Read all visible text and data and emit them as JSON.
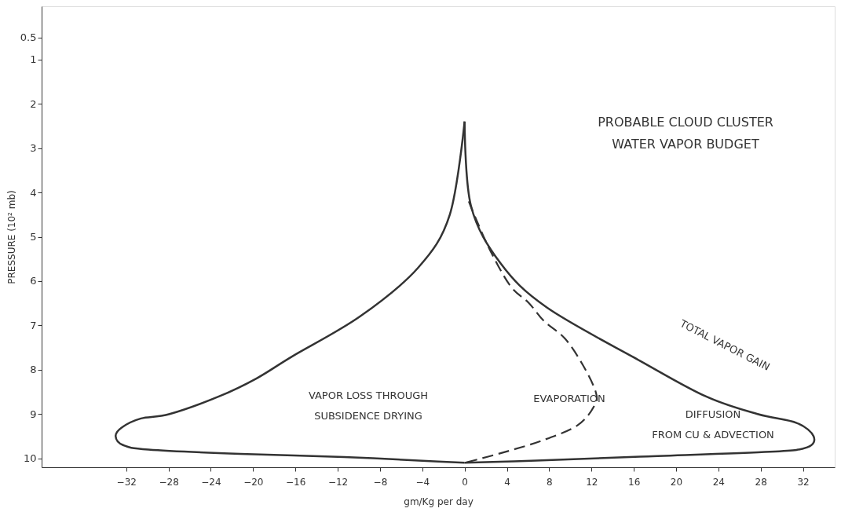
{
  "chart_data": {
    "type": "line",
    "title": "PROBABLE CLOUD CLUSTER\nWATER VAPOR BUDGET",
    "xlabel": "gm/Kg per day",
    "ylabel": "PRESSURE (10² mb)",
    "xlim": [
      -40,
      35
    ],
    "ylim": [
      10.2,
      -0.2
    ],
    "xticks": [
      -32,
      -28,
      -24,
      -20,
      -16,
      -12,
      -8,
      -4,
      0,
      4,
      8,
      12,
      16,
      20,
      24,
      28,
      32
    ],
    "yticks": [
      0.5,
      1,
      2,
      3,
      4,
      5,
      6,
      7,
      8,
      9,
      10
    ],
    "grid": false,
    "series": [
      {
        "color": "#333333",
        "line_style": "solid",
        "x": [
          0,
          -1.4,
          -4.4,
          -9.9,
          -16.3,
          -19.7,
          -23.2,
          -27.9,
          -30.6,
          -32.4,
          -33.0,
          -32.3,
          -29.9,
          -21.2,
          -11.4,
          -2.5,
          0
        ],
        "values": [
          2.4,
          4.5,
          5.7,
          6.8,
          7.7,
          8.2,
          8.6,
          9.0,
          9.1,
          9.3,
          9.5,
          9.7,
          9.8,
          9.9,
          9.97,
          10.07,
          10.1
        ]
      },
      {
        "color": "#333333",
        "line_style": "solid",
        "x": [
          0,
          0.6,
          3.4,
          7.8,
          16.6,
          22.8,
          27.7,
          31.4,
          33.0,
          32.4,
          28.9,
          16.6,
          6.8,
          0
        ],
        "values": [
          2.4,
          4.3,
          5.6,
          6.6,
          7.8,
          8.6,
          9.0,
          9.2,
          9.5,
          9.75,
          9.85,
          9.96,
          10.05,
          10.1
        ]
      },
      {
        "color": "#333333",
        "line_style": "dashed",
        "x": [
          0.4,
          0.9,
          2.4,
          4.3,
          6.1,
          7.5,
          9.5,
          11.2,
          12.4,
          12.3,
          10.7,
          7.3,
          3.6,
          0
        ],
        "values": [
          4.2,
          4.5,
          5.3,
          6.1,
          6.5,
          6.9,
          7.3,
          7.9,
          8.5,
          8.8,
          9.25,
          9.6,
          9.87,
          10.1
        ]
      }
    ],
    "annotations": [
      "VAPOR LOSS THROUGH\nSUBSIDENCE DRYING",
      "EVAPORATION",
      "DIFFUSION\nFROM CU & ADVECTION",
      "TOTAL VAPOR GAIN"
    ]
  }
}
